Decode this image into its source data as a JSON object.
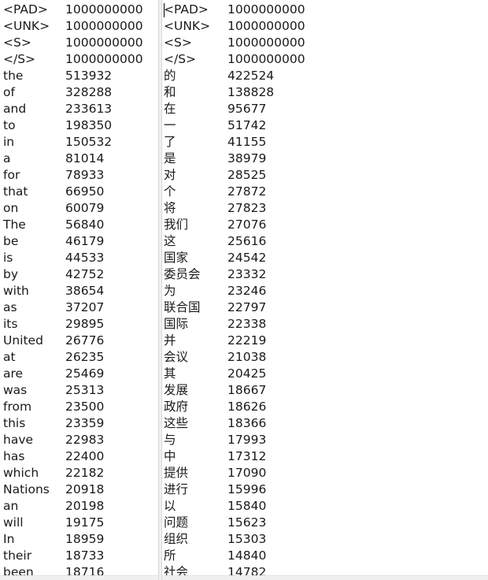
{
  "left_pane": {
    "rows": [
      {
        "token": "<PAD>",
        "count": "1000000000"
      },
      {
        "token": "<UNK>",
        "count": "1000000000"
      },
      {
        "token": "<S>",
        "count": "1000000000"
      },
      {
        "token": "</S>",
        "count": "1000000000"
      },
      {
        "token": "the",
        "count": "513932"
      },
      {
        "token": "of",
        "count": "328288"
      },
      {
        "token": "and",
        "count": "233613"
      },
      {
        "token": "to",
        "count": "198350"
      },
      {
        "token": "in",
        "count": "150532"
      },
      {
        "token": "a",
        "count": "81014"
      },
      {
        "token": "for",
        "count": "78933"
      },
      {
        "token": "that",
        "count": "66950"
      },
      {
        "token": "on",
        "count": "60079"
      },
      {
        "token": "The",
        "count": "56840"
      },
      {
        "token": "be",
        "count": "46179"
      },
      {
        "token": "is",
        "count": "44533"
      },
      {
        "token": "by",
        "count": "42752"
      },
      {
        "token": "with",
        "count": "38654"
      },
      {
        "token": "as",
        "count": "37207"
      },
      {
        "token": "its",
        "count": "29895"
      },
      {
        "token": "United",
        "count": "26776"
      },
      {
        "token": "at",
        "count": "26235"
      },
      {
        "token": "are",
        "count": "25469"
      },
      {
        "token": "was",
        "count": "25313"
      },
      {
        "token": "from",
        "count": "23500"
      },
      {
        "token": "this",
        "count": "23359"
      },
      {
        "token": "have",
        "count": "22983"
      },
      {
        "token": "has",
        "count": "22400"
      },
      {
        "token": "which",
        "count": "22182"
      },
      {
        "token": "Nations",
        "count": "20918"
      },
      {
        "token": "an",
        "count": "20198"
      },
      {
        "token": "will",
        "count": "19175"
      },
      {
        "token": "In",
        "count": "18959"
      },
      {
        "token": "their",
        "count": "18733"
      },
      {
        "token": "been",
        "count": "18716"
      }
    ]
  },
  "right_pane": {
    "rows": [
      {
        "token": "<PAD>",
        "count": "1000000000"
      },
      {
        "token": "<UNK>",
        "count": "1000000000"
      },
      {
        "token": "<S>",
        "count": "1000000000"
      },
      {
        "token": "</S>",
        "count": "1000000000"
      },
      {
        "token": "的",
        "count": "422524"
      },
      {
        "token": "和",
        "count": "138828"
      },
      {
        "token": "在",
        "count": "95677"
      },
      {
        "token": "一",
        "count": "51742"
      },
      {
        "token": "了",
        "count": "41155"
      },
      {
        "token": "是",
        "count": "38979"
      },
      {
        "token": "对",
        "count": "28525"
      },
      {
        "token": "个",
        "count": "27872"
      },
      {
        "token": "将",
        "count": "27823"
      },
      {
        "token": "我们",
        "count": "27076"
      },
      {
        "token": "这",
        "count": "25616"
      },
      {
        "token": "国家",
        "count": "24542"
      },
      {
        "token": "委员会",
        "count": "23332"
      },
      {
        "token": "为",
        "count": "23246"
      },
      {
        "token": "联合国",
        "count": "22797"
      },
      {
        "token": "国际",
        "count": "22338"
      },
      {
        "token": "并",
        "count": "22219"
      },
      {
        "token": "会议",
        "count": "21038"
      },
      {
        "token": "其",
        "count": "20425"
      },
      {
        "token": "发展",
        "count": "18667"
      },
      {
        "token": "政府",
        "count": "18626"
      },
      {
        "token": "这些",
        "count": "18366"
      },
      {
        "token": "与",
        "count": "17993"
      },
      {
        "token": "中",
        "count": "17312"
      },
      {
        "token": "提供",
        "count": "17090"
      },
      {
        "token": "进行",
        "count": "15996"
      },
      {
        "token": "以",
        "count": "15840"
      },
      {
        "token": "问题",
        "count": "15623"
      },
      {
        "token": "组织",
        "count": "15303"
      },
      {
        "token": "所",
        "count": "14840"
      },
      {
        "token": "社会",
        "count": "14782"
      }
    ]
  }
}
